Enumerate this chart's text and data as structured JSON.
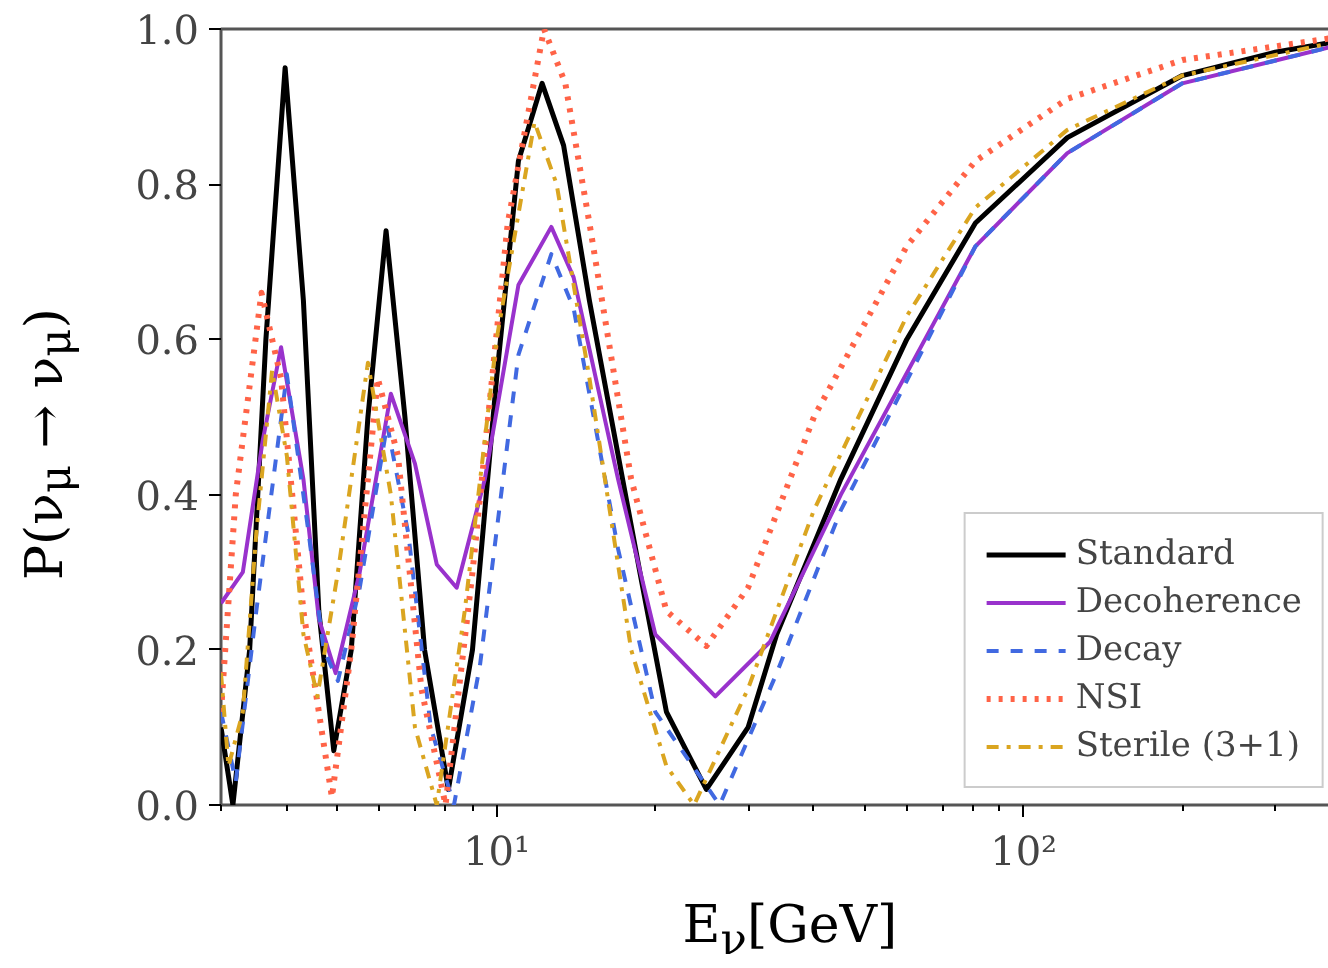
{
  "chart_data": {
    "type": "line",
    "xlabel": "E$_{ν}$[GeV]",
    "ylabel": "P(ν$_{μ}$ → ν$_{μ}$)",
    "log": "x",
    "xlim": [
      3,
      400
    ],
    "ylim": [
      0,
      1
    ],
    "xticks": [
      {
        "value": 10,
        "label": "10¹"
      },
      {
        "value": 100,
        "label": "10²"
      }
    ],
    "yticks": [
      {
        "value": 0,
        "label": "0.0"
      },
      {
        "value": 0.2,
        "label": "0.2"
      },
      {
        "value": 0.4,
        "label": "0.4"
      },
      {
        "value": 0.6,
        "label": "0.6"
      },
      {
        "value": 0.8,
        "label": "0.8"
      },
      {
        "value": 1,
        "label": "1.0"
      }
    ],
    "grid": false,
    "legend": "bottom right",
    "series": [
      {
        "name": "Standard",
        "color": "#000000",
        "line_style": "solid",
        "x": [
          3.0,
          3.16,
          3.4,
          3.65,
          3.97,
          4.3,
          4.6,
          4.91,
          5.3,
          5.7,
          6.17,
          6.7,
          7.3,
          8.1,
          9,
          10,
          11,
          12.2,
          13.4,
          15,
          18.7,
          21,
          25,
          30,
          34,
          45,
          60,
          81,
          121,
          200,
          300,
          400
        ],
        "values": [
          0.1,
          0.0,
          0.2,
          0.6,
          0.95,
          0.65,
          0.25,
          0.07,
          0.2,
          0.5,
          0.74,
          0.5,
          0.2,
          0.02,
          0.2,
          0.55,
          0.83,
          0.93,
          0.85,
          0.65,
          0.3,
          0.12,
          0.02,
          0.1,
          0.22,
          0.42,
          0.6,
          0.75,
          0.86,
          0.94,
          0.97,
          0.985
        ]
      },
      {
        "name": "Decoherence",
        "color": "#9932cc",
        "line_style": "solid",
        "x": [
          3,
          3.3,
          3.6,
          3.9,
          4.3,
          4.6,
          4.95,
          5.5,
          6.3,
          7,
          7.7,
          8.4,
          9.5,
          11,
          12.7,
          14,
          17,
          20,
          26,
          33,
          45,
          81,
          121,
          200,
          400
        ],
        "values": [
          0.26,
          0.3,
          0.47,
          0.59,
          0.42,
          0.24,
          0.17,
          0.3,
          0.53,
          0.44,
          0.31,
          0.28,
          0.42,
          0.67,
          0.745,
          0.68,
          0.42,
          0.22,
          0.14,
          0.21,
          0.4,
          0.72,
          0.84,
          0.93,
          0.98
        ]
      },
      {
        "name": "Decay",
        "color": "#4169e1",
        "line_style": "dashed",
        "x": [
          3,
          3.2,
          3.5,
          4.0,
          4.4,
          4.7,
          5.0,
          5.5,
          6.2,
          6.8,
          7.5,
          8.3,
          9.3,
          11,
          12.7,
          14,
          17,
          20,
          26.5,
          34,
          45,
          81,
          121,
          200,
          400
        ],
        "values": [
          0.12,
          0.03,
          0.25,
          0.555,
          0.35,
          0.2,
          0.16,
          0.28,
          0.49,
          0.35,
          0.1,
          0.0,
          0.18,
          0.58,
          0.71,
          0.64,
          0.33,
          0.12,
          0.0,
          0.17,
          0.38,
          0.72,
          0.84,
          0.93,
          0.98
        ]
      },
      {
        "name": "NSI",
        "color": "#ff6347",
        "line_style": "dotted",
        "x": [
          3,
          3.2,
          3.58,
          3.9,
          4.3,
          4.87,
          5.3,
          5.95,
          6.5,
          7.2,
          8.0,
          9,
          10.5,
          12.3,
          13.5,
          15,
          18,
          21,
          25,
          30,
          40,
          60,
          81,
          121,
          200,
          400
        ],
        "values": [
          0.12,
          0.4,
          0.66,
          0.55,
          0.25,
          0.01,
          0.2,
          0.55,
          0.45,
          0.15,
          0.0,
          0.3,
          0.75,
          1.0,
          0.93,
          0.75,
          0.42,
          0.25,
          0.205,
          0.28,
          0.5,
          0.72,
          0.83,
          0.91,
          0.96,
          0.99
        ]
      },
      {
        "name": "Sterile (3+1)",
        "color": "#daa520",
        "line_style": "dashdot",
        "x": [
          3,
          3.1,
          3.3,
          3.5,
          3.75,
          4.0,
          4.3,
          4.57,
          5.0,
          5.7,
          6.3,
          7.0,
          7.7,
          8.7,
          10,
          11.8,
          13,
          15,
          18,
          21,
          23.7,
          30,
          40,
          60,
          81,
          121,
          200,
          400
        ],
        "values": [
          0.17,
          0.05,
          0.12,
          0.35,
          0.56,
          0.45,
          0.22,
          0.14,
          0.3,
          0.57,
          0.4,
          0.1,
          0.0,
          0.25,
          0.6,
          0.88,
          0.8,
          0.55,
          0.2,
          0.05,
          0.0,
          0.15,
          0.38,
          0.63,
          0.77,
          0.87,
          0.94,
          0.985
        ]
      }
    ]
  }
}
